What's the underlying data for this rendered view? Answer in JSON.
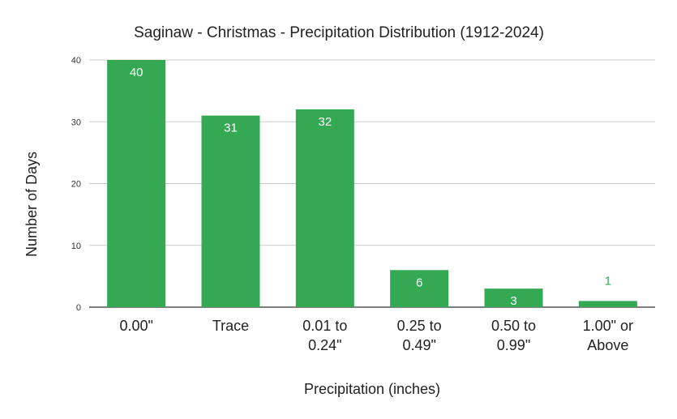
{
  "chart_data": {
    "type": "bar",
    "title": "Saginaw - Christmas - Precipitation Distribution (1912-2024)",
    "xlabel": "Precipitation (inches)",
    "ylabel": "Number of Days",
    "categories": [
      [
        "0.00\""
      ],
      [
        "Trace"
      ],
      [
        "0.01 to",
        "0.24\""
      ],
      [
        "0.25 to",
        "0.49\""
      ],
      [
        "0.50 to",
        "0.99\""
      ],
      [
        "1.00\" or",
        "Above"
      ]
    ],
    "values": [
      40,
      31,
      32,
      6,
      3,
      1
    ],
    "ylim": [
      0,
      40
    ],
    "yticks": [
      0,
      10,
      20,
      30,
      40
    ],
    "grid": true,
    "legend": "none",
    "colors": {
      "bar": "#34a853",
      "label_inside": "#ffffff",
      "label_outside": "#34a853",
      "grid": "#cccccc",
      "axis": "#333333"
    }
  }
}
